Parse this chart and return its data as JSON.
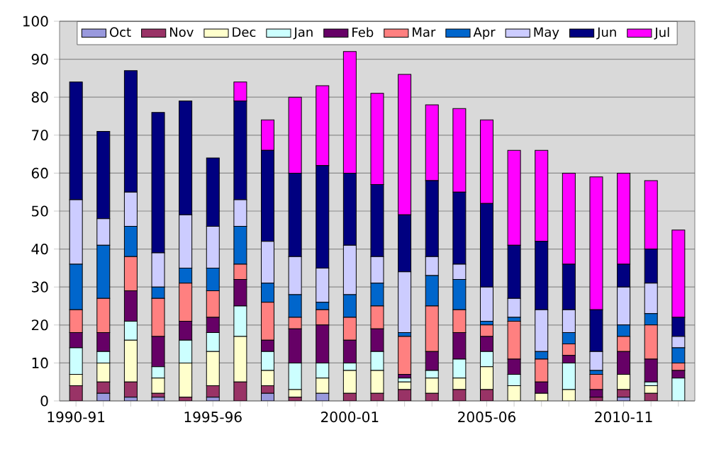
{
  "chart_data": {
    "type": "bar",
    "stacked": true,
    "grid": "y",
    "legend": "top",
    "ylim": [
      0,
      100
    ],
    "yticks": [
      0,
      10,
      20,
      30,
      40,
      50,
      60,
      70,
      80,
      90,
      100
    ],
    "categories": [
      "1990-91",
      null,
      null,
      null,
      null,
      "1995-96",
      null,
      null,
      null,
      null,
      "2000-01",
      null,
      null,
      null,
      null,
      "2005-06",
      null,
      null,
      null,
      null,
      "2010-11",
      null,
      null
    ],
    "series": [
      {
        "name": "Oct",
        "color": "#9999dd",
        "values": [
          0,
          2,
          1,
          1,
          0,
          1,
          0,
          2,
          0,
          2,
          0,
          0,
          0,
          0,
          0,
          0,
          0,
          0,
          0,
          0,
          1,
          0,
          0
        ]
      },
      {
        "name": "Nov",
        "color": "#993366",
        "values": [
          4,
          3,
          4,
          1,
          1,
          3,
          5,
          2,
          1,
          0,
          2,
          2,
          3,
          2,
          3,
          3,
          0,
          0,
          0,
          1,
          2,
          2,
          0
        ]
      },
      {
        "name": "Dec",
        "color": "#ffffcc",
        "values": [
          3,
          5,
          11,
          4,
          9,
          9,
          12,
          4,
          2,
          4,
          6,
          6,
          2,
          4,
          3,
          6,
          4,
          2,
          3,
          0,
          4,
          2,
          0
        ]
      },
      {
        "name": "Jan",
        "color": "#ccffff",
        "values": [
          7,
          3,
          5,
          3,
          6,
          5,
          8,
          5,
          7,
          4,
          2,
          5,
          1,
          2,
          5,
          4,
          3,
          0,
          7,
          0,
          0,
          1,
          6
        ]
      },
      {
        "name": "Feb",
        "color": "#660066",
        "values": [
          4,
          5,
          8,
          8,
          5,
          4,
          7,
          3,
          9,
          10,
          6,
          6,
          1,
          5,
          7,
          4,
          4,
          3,
          2,
          2,
          6,
          6,
          2
        ]
      },
      {
        "name": "Mar",
        "color": "#ff8080",
        "values": [
          6,
          9,
          9,
          10,
          10,
          7,
          4,
          10,
          3,
          4,
          6,
          6,
          10,
          12,
          6,
          3,
          10,
          6,
          3,
          4,
          4,
          9,
          2
        ]
      },
      {
        "name": "Apr",
        "color": "#0066cc",
        "values": [
          12,
          14,
          8,
          3,
          4,
          6,
          10,
          5,
          6,
          2,
          6,
          6,
          1,
          8,
          8,
          1,
          1,
          2,
          3,
          1,
          3,
          3,
          4
        ]
      },
      {
        "name": "May",
        "color": "#ccccff",
        "values": [
          17,
          7,
          9,
          9,
          14,
          11,
          7,
          11,
          10,
          9,
          13,
          7,
          16,
          5,
          4,
          9,
          5,
          11,
          6,
          5,
          10,
          8,
          3
        ]
      },
      {
        "name": "Jun",
        "color": "#000080",
        "values": [
          31,
          23,
          32,
          37,
          30,
          18,
          26,
          24,
          22,
          27,
          19,
          19,
          15,
          20,
          19,
          22,
          14,
          18,
          12,
          11,
          6,
          9,
          5
        ]
      },
      {
        "name": "Jul",
        "color": "#ff00ff",
        "values": [
          0,
          0,
          0,
          0,
          0,
          0,
          5,
          8,
          20,
          21,
          32,
          24,
          37,
          20,
          22,
          22,
          25,
          24,
          24,
          35,
          24,
          18,
          23
        ]
      }
    ]
  }
}
